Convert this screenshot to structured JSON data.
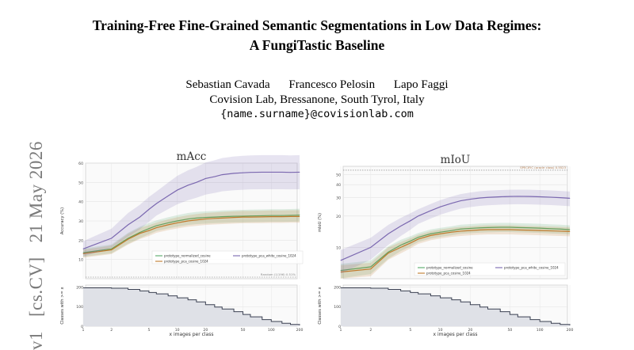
{
  "paper": {
    "title_line1": "Training-Free Fine-Grained Semantic Segmentations in Low Data Regimes:",
    "title_line2": "A FungiTastic Baseline",
    "authors": [
      "Sebastian Cavada",
      "Francesco Pelosin",
      "Lapo Faggi"
    ],
    "affiliation": "Covision Lab, Bressanone, South Tyrol, Italy",
    "email": "{name.surname}@covisionlab.com"
  },
  "arxiv_stamp": {
    "id": "v1",
    "category": "[cs.CV]",
    "date": "21 May 2026"
  },
  "colors": {
    "normalized": "#55a868",
    "pca": "#c07a2c",
    "pca_white": "#7b68b0",
    "count": "#3b4152"
  },
  "chart_data": [
    {
      "type": "line",
      "title": "mAcc",
      "xlabel": "",
      "ylabel": "Accuracy (%)",
      "xscale": "log",
      "xlim": [
        1,
        200
      ],
      "ylim": [
        0,
        60
      ],
      "yticks": [
        10,
        20,
        30,
        40,
        50,
        60
      ],
      "xticks": [
        1,
        2,
        5,
        10,
        20,
        50,
        100,
        200
      ],
      "grid": true,
      "legend_position": "bottom-right",
      "x": [
        1,
        2,
        3,
        4,
        5,
        6,
        8,
        10,
        13,
        16,
        20,
        25,
        30,
        40,
        50,
        60,
        80,
        100,
        130,
        160,
        200
      ],
      "series": [
        {
          "name": "prototype_normalized_cosine",
          "values": [
            13.5,
            15.5,
            21,
            24,
            26,
            27.5,
            29,
            30,
            31,
            31.5,
            31.8,
            32,
            32.2,
            32.4,
            32.5,
            32.6,
            32.7,
            32.8,
            32.8,
            32.9,
            33
          ]
        },
        {
          "name": "prototype_pca_cosine_1024",
          "values": [
            13,
            15,
            20.5,
            23.5,
            25,
            26.5,
            28,
            29,
            30,
            30.5,
            31,
            31.3,
            31.5,
            31.8,
            32,
            32,
            32.1,
            32.2,
            32.2,
            32.3,
            32.3
          ]
        },
        {
          "name": "prototype_pca_white_cosine_1024",
          "values": [
            15.5,
            21,
            28,
            32,
            36,
            39,
            43,
            46,
            48.5,
            50,
            52,
            53,
            54,
            54.7,
            55,
            55.2,
            55.3,
            55.3,
            55.3,
            55.2,
            55.3
          ]
        }
      ],
      "reference_line": {
        "label": "Random (1/196) 0.51%",
        "value": 0.51
      }
    },
    {
      "type": "line",
      "title": "mIoU",
      "xlabel": "",
      "ylabel": "mIoU (%)",
      "xscale": "log",
      "yscale": "log",
      "xlim": [
        1,
        200
      ],
      "ylim": [
        5,
        60
      ],
      "yticks": [
        10,
        20,
        30,
        40,
        50
      ],
      "xticks": [
        1,
        2,
        5,
        10,
        20,
        50,
        100,
        200
      ],
      "grid": true,
      "legend_position": "bottom-right",
      "x": [
        1,
        2,
        3,
        4,
        5,
        6,
        8,
        10,
        13,
        16,
        20,
        25,
        30,
        40,
        50,
        60,
        80,
        100,
        130,
        160,
        200
      ],
      "series": [
        {
          "name": "prototype_normalized_cosine",
          "values": [
            6,
            6.5,
            9,
            10.5,
            11.5,
            12.5,
            13.5,
            14,
            14.5,
            15,
            15.2,
            15.4,
            15.5,
            15.6,
            15.6,
            15.5,
            15.4,
            15.3,
            15.1,
            15,
            14.8
          ]
        },
        {
          "name": "prototype_pca_cosine_1024",
          "values": [
            5.8,
            6.2,
            8.8,
            10,
            11,
            12,
            13,
            13.5,
            14,
            14.3,
            14.5,
            14.7,
            14.8,
            14.8,
            14.8,
            14.7,
            14.6,
            14.5,
            14.4,
            14.3,
            14.2
          ]
        },
        {
          "name": "prototype_pca_white_cosine_1024",
          "values": [
            7.5,
            10,
            13.5,
            16,
            18,
            20,
            22.5,
            24.5,
            26.5,
            28,
            29,
            29.8,
            30.2,
            30.6,
            30.8,
            30.9,
            30.8,
            30.6,
            30.3,
            30,
            29.6
          ]
        }
      ],
      "reference_line": {
        "label": "SPECIFIC (oracle class) 0.5523",
        "value": 55
      }
    },
    {
      "type": "area",
      "title": "",
      "xlabel": "x images per class",
      "ylabel": "Classes with >= x",
      "xscale": "log",
      "xlim": [
        1,
        200
      ],
      "ylim": [
        0,
        210
      ],
      "yticks": [
        0,
        100,
        200
      ],
      "xticks": [
        1,
        2,
        5,
        10,
        20,
        50,
        100,
        200
      ],
      "x": [
        1,
        2,
        3,
        4,
        5,
        6,
        8,
        10,
        13,
        16,
        20,
        25,
        30,
        40,
        50,
        60,
        80,
        100,
        130,
        160,
        200
      ],
      "values": [
        196,
        194,
        188,
        180,
        172,
        165,
        155,
        145,
        135,
        124,
        110,
        98,
        88,
        74,
        60,
        48,
        34,
        24,
        15,
        9,
        5
      ]
    },
    {
      "type": "area",
      "title": "",
      "xlabel": "x images per class",
      "ylabel": "Classes with >= x",
      "xscale": "log",
      "xlim": [
        1,
        200
      ],
      "ylim": [
        0,
        210
      ],
      "yticks": [
        0,
        100,
        200
      ],
      "xticks": [
        1,
        2,
        5,
        10,
        20,
        50,
        100,
        200
      ],
      "x": [
        1,
        2,
        3,
        4,
        5,
        6,
        8,
        10,
        13,
        16,
        20,
        25,
        30,
        40,
        50,
        60,
        80,
        100,
        130,
        160,
        200
      ],
      "values": [
        196,
        194,
        188,
        180,
        172,
        165,
        155,
        145,
        135,
        124,
        110,
        98,
        88,
        74,
        60,
        48,
        34,
        24,
        15,
        9,
        5
      ]
    }
  ]
}
